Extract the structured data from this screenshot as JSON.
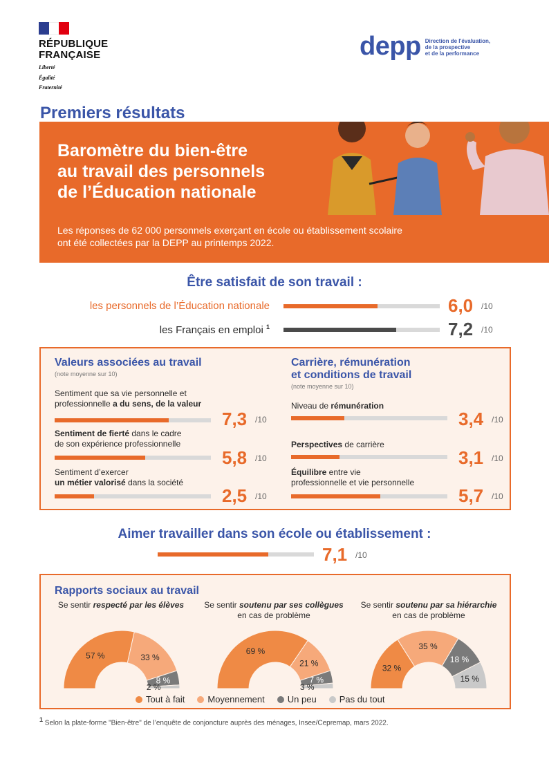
{
  "header": {
    "republic_name_1": "RÉPUBLIQUE",
    "republic_name_2": "FRANÇAISE",
    "motto_1": "Liberté",
    "motto_2": "Égalité",
    "motto_3": "Fraternité",
    "depp_word": "depp",
    "depp_desc_1": "Direction de l'évaluation,",
    "depp_desc_2": "de la prospective",
    "depp_desc_3": "et de la performance"
  },
  "banner": {
    "kicker": "Premiers résultats",
    "title_1": "Baromètre du bien-être",
    "title_2": "au travail des personnels",
    "title_3": "de l’Éducation nationale",
    "subtitle_1": "Les réponses de 62 000 personnels exerçant en école ou établissement scolaire",
    "subtitle_2": "ont été collectées par la DEPP au printemps 2022."
  },
  "satisfaction": {
    "title": "Être satisfait de son travail :",
    "rows": [
      {
        "label": "les personnels de l’Éducation nationale",
        "value": 6.0,
        "display": "6,0",
        "unit": "/10",
        "color": "#e86a2a"
      },
      {
        "label": "les Français en emploi",
        "sup": "1",
        "value": 7.2,
        "display": "7,2",
        "unit": "/10",
        "color": "#4a4a4a"
      }
    ]
  },
  "values_box": {
    "title": "Valeurs associées au travail",
    "note": "(note moyenne sur 10)",
    "items": [
      {
        "line1": "Sentiment que sa vie personnelle et",
        "line2_pre": "professionnelle ",
        "line2_bold": "a du sens, de la valeur",
        "value": 7.3,
        "display": "7,3",
        "unit": "/10"
      },
      {
        "line1_bold": "Sentiment de fierté",
        "line1_post": " dans le cadre",
        "line2": "de son expérience professionnelle",
        "value": 5.8,
        "display": "5,8",
        "unit": "/10"
      },
      {
        "line1": "Sentiment d’exercer",
        "line2_bold": "un métier valorisé",
        "line2_post": " dans la société",
        "value": 2.5,
        "display": "2,5",
        "unit": "/10"
      }
    ]
  },
  "career_box": {
    "title_1": "Carrière, rémunération",
    "title_2": "et conditions de travail",
    "note": "(note moyenne sur 10)",
    "items": [
      {
        "pre": "Niveau de ",
        "bold": "rémunération",
        "post": "",
        "value": 3.4,
        "display": "3,4",
        "unit": "/10"
      },
      {
        "pre": "",
        "bold": "Perspectives",
        "post": " de carrière",
        "value": 3.1,
        "display": "3,1",
        "unit": "/10"
      },
      {
        "pre": "",
        "bold": "Équilibre",
        "post": " entre vie",
        "line2": "professionnelle et vie personnelle",
        "value": 5.7,
        "display": "5,7",
        "unit": "/10"
      }
    ]
  },
  "school": {
    "title": "Aimer travailler dans son école ou établissement :",
    "value": 7.1,
    "display": "7,1",
    "unit": "/10"
  },
  "social": {
    "title": "Rapports sociaux au travail",
    "charts": [
      {
        "caption_pre": "Se sentir ",
        "caption_bold": "respecté par les élèves",
        "caption_post": "",
        "caption_line2": "",
        "labels": [
          "57 %",
          "33 %",
          "8 %",
          "2 %"
        ],
        "values": [
          57,
          33,
          8,
          2
        ]
      },
      {
        "caption_pre": "Se sentir ",
        "caption_bold": "soutenu par ses collègues",
        "caption_post": "",
        "caption_line2": "en cas de problème",
        "labels": [
          "69 %",
          "21 %",
          "7 %",
          "3 %"
        ],
        "values": [
          69,
          21,
          7,
          3
        ]
      },
      {
        "caption_pre": "Se sentir ",
        "caption_bold": "soutenu par sa hiérarchie",
        "caption_post": "",
        "caption_line2": "en cas de problème",
        "labels": [
          "32 %",
          "35 %",
          "18 %",
          "15 %"
        ],
        "values": [
          32,
          35,
          18,
          15
        ]
      }
    ],
    "legend": [
      {
        "label": "Tout à fait",
        "color": "#ef8a45"
      },
      {
        "label": "Moyennement",
        "color": "#f6a97a"
      },
      {
        "label": "Un peu",
        "color": "#7a7a7a"
      },
      {
        "label": "Pas du tout",
        "color": "#c9c9c9"
      }
    ]
  },
  "footnote": {
    "sup": "1",
    "text": "Selon la plate-forme \"Bien-être\" de l’enquête de conjoncture auprès des ménages, Insee/Cepremap, mars 2022."
  }
}
